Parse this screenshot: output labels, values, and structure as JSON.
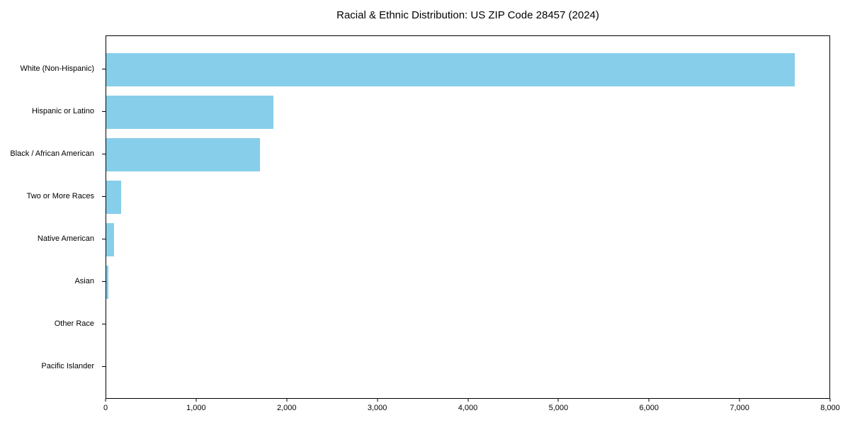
{
  "figure": {
    "background_color": "#ffffff",
    "axis_color": "#000000",
    "text_color": "#000000"
  },
  "chart_data": {
    "type": "bar",
    "orientation": "horizontal",
    "title": "Racial & Ethnic Distribution: US ZIP Code 28457 (2024)",
    "categories": [
      "White (Non-Hispanic)",
      "Hispanic or Latino",
      "Black / African American",
      "Two or More Races",
      "Native American",
      "Asian",
      "Other Race",
      "Pacific Islander"
    ],
    "values": [
      7615,
      1853,
      1704,
      164,
      86,
      26,
      0,
      0
    ],
    "xlabel": "",
    "ylabel": "",
    "xlim": [
      0,
      8000
    ],
    "xticks": [
      0,
      1000,
      2000,
      3000,
      4000,
      5000,
      6000,
      7000,
      8000
    ],
    "xtick_labels": [
      "0",
      "1,000",
      "2,000",
      "3,000",
      "4,000",
      "5,000",
      "6,000",
      "7,000",
      "8,000"
    ],
    "bar_color": "#87CEEB",
    "grid": false,
    "legend": "none"
  }
}
